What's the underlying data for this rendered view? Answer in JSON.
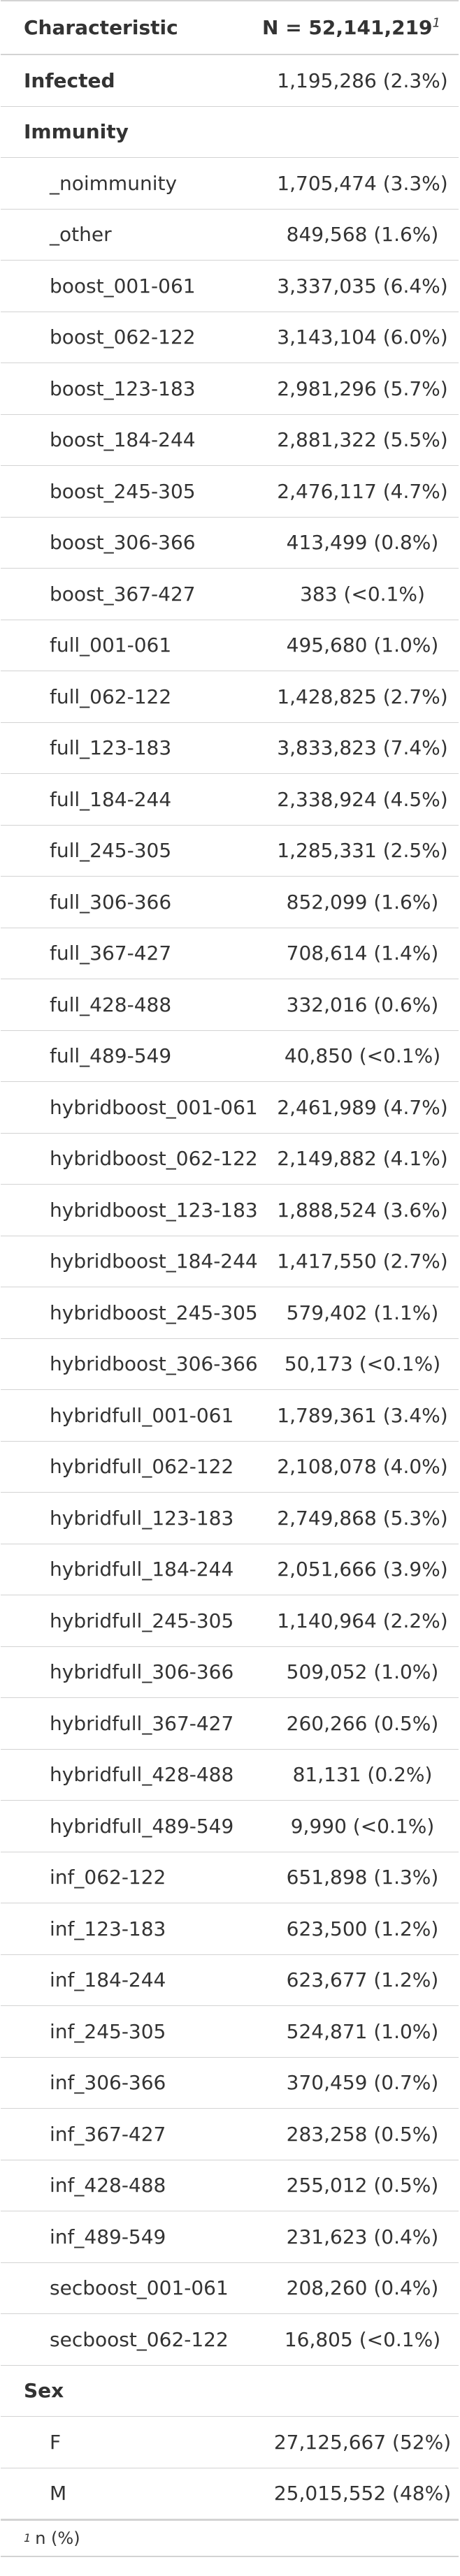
{
  "header": {
    "characteristic": "Characteristic",
    "n_label": "N = 52,141,219",
    "n_footnote_mark": "1"
  },
  "rows": [
    {
      "type": "group",
      "label": "Infected",
      "value": "1,195,286 (2.3%)"
    },
    {
      "type": "group",
      "label": "Immunity",
      "value": ""
    },
    {
      "type": "level",
      "label": "_noimmunity",
      "value": "1,705,474 (3.3%)"
    },
    {
      "type": "level",
      "label": "_other",
      "value": "849,568 (1.6%)"
    },
    {
      "type": "level",
      "label": "boost_001-061",
      "value": "3,337,035 (6.4%)"
    },
    {
      "type": "level",
      "label": "boost_062-122",
      "value": "3,143,104 (6.0%)"
    },
    {
      "type": "level",
      "label": "boost_123-183",
      "value": "2,981,296 (5.7%)"
    },
    {
      "type": "level",
      "label": "boost_184-244",
      "value": "2,881,322 (5.5%)"
    },
    {
      "type": "level",
      "label": "boost_245-305",
      "value": "2,476,117 (4.7%)"
    },
    {
      "type": "level",
      "label": "boost_306-366",
      "value": "413,499 (0.8%)"
    },
    {
      "type": "level",
      "label": "boost_367-427",
      "value": "383 (<0.1%)"
    },
    {
      "type": "level",
      "label": "full_001-061",
      "value": "495,680 (1.0%)"
    },
    {
      "type": "level",
      "label": "full_062-122",
      "value": "1,428,825 (2.7%)"
    },
    {
      "type": "level",
      "label": "full_123-183",
      "value": "3,833,823 (7.4%)"
    },
    {
      "type": "level",
      "label": "full_184-244",
      "value": "2,338,924 (4.5%)"
    },
    {
      "type": "level",
      "label": "full_245-305",
      "value": "1,285,331 (2.5%)"
    },
    {
      "type": "level",
      "label": "full_306-366",
      "value": "852,099 (1.6%)"
    },
    {
      "type": "level",
      "label": "full_367-427",
      "value": "708,614 (1.4%)"
    },
    {
      "type": "level",
      "label": "full_428-488",
      "value": "332,016 (0.6%)"
    },
    {
      "type": "level",
      "label": "full_489-549",
      "value": "40,850 (<0.1%)"
    },
    {
      "type": "level",
      "label": "hybridboost_001-061",
      "value": "2,461,989 (4.7%)"
    },
    {
      "type": "level",
      "label": "hybridboost_062-122",
      "value": "2,149,882 (4.1%)"
    },
    {
      "type": "level",
      "label": "hybridboost_123-183",
      "value": "1,888,524 (3.6%)"
    },
    {
      "type": "level",
      "label": "hybridboost_184-244",
      "value": "1,417,550 (2.7%)"
    },
    {
      "type": "level",
      "label": "hybridboost_245-305",
      "value": "579,402 (1.1%)"
    },
    {
      "type": "level",
      "label": "hybridboost_306-366",
      "value": "50,173 (<0.1%)"
    },
    {
      "type": "level",
      "label": "hybridfull_001-061",
      "value": "1,789,361 (3.4%)"
    },
    {
      "type": "level",
      "label": "hybridfull_062-122",
      "value": "2,108,078 (4.0%)"
    },
    {
      "type": "level",
      "label": "hybridfull_123-183",
      "value": "2,749,868 (5.3%)"
    },
    {
      "type": "level",
      "label": "hybridfull_184-244",
      "value": "2,051,666 (3.9%)"
    },
    {
      "type": "level",
      "label": "hybridfull_245-305",
      "value": "1,140,964 (2.2%)"
    },
    {
      "type": "level",
      "label": "hybridfull_306-366",
      "value": "509,052 (1.0%)"
    },
    {
      "type": "level",
      "label": "hybridfull_367-427",
      "value": "260,266 (0.5%)"
    },
    {
      "type": "level",
      "label": "hybridfull_428-488",
      "value": "81,131 (0.2%)"
    },
    {
      "type": "level",
      "label": "hybridfull_489-549",
      "value": "9,990 (<0.1%)"
    },
    {
      "type": "level",
      "label": "inf_062-122",
      "value": "651,898 (1.3%)"
    },
    {
      "type": "level",
      "label": "inf_123-183",
      "value": "623,500 (1.2%)"
    },
    {
      "type": "level",
      "label": "inf_184-244",
      "value": "623,677 (1.2%)"
    },
    {
      "type": "level",
      "label": "inf_245-305",
      "value": "524,871 (1.0%)"
    },
    {
      "type": "level",
      "label": "inf_306-366",
      "value": "370,459 (0.7%)"
    },
    {
      "type": "level",
      "label": "inf_367-427",
      "value": "283,258 (0.5%)"
    },
    {
      "type": "level",
      "label": "inf_428-488",
      "value": "255,012 (0.5%)"
    },
    {
      "type": "level",
      "label": "inf_489-549",
      "value": "231,623 (0.4%)"
    },
    {
      "type": "level",
      "label": "secboost_001-061",
      "value": "208,260 (0.4%)"
    },
    {
      "type": "level",
      "label": "secboost_062-122",
      "value": "16,805 (<0.1%)"
    },
    {
      "type": "group",
      "label": "Sex",
      "value": ""
    },
    {
      "type": "level",
      "label": "F",
      "value": "27,125,667 (52%)"
    },
    {
      "type": "level",
      "label": "M",
      "value": "25,015,552 (48%)"
    }
  ],
  "footnote": {
    "mark": "1",
    "text": "n (%)"
  }
}
